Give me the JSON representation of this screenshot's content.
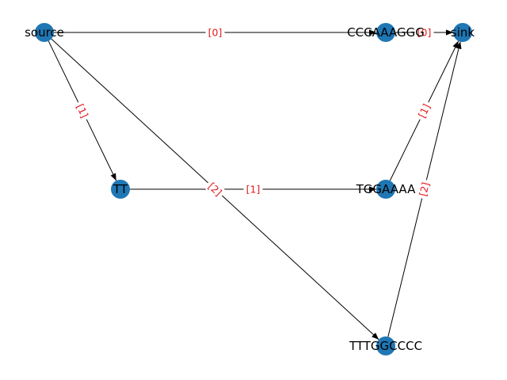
{
  "graph": {
    "node_color": "#1f77b4",
    "edge_label_color": "#e41a1c",
    "nodes": [
      {
        "id": "source",
        "label": "source"
      },
      {
        "id": "cccaaaggg",
        "label": "CCCAAAGGG"
      },
      {
        "id": "sink",
        "label": "sink"
      },
      {
        "id": "tt",
        "label": "TT"
      },
      {
        "id": "tggaaaa",
        "label": "TGGAAAA"
      },
      {
        "id": "tttggcccc",
        "label": "TTTGGCCCC"
      }
    ],
    "edges": [
      {
        "from": "source",
        "to": "cccaaaggg",
        "label": "[0]"
      },
      {
        "from": "cccaaaggg",
        "to": "sink",
        "label": "[0]"
      },
      {
        "from": "source",
        "to": "tt",
        "label": "[1]"
      },
      {
        "from": "source",
        "to": "tttggcccc",
        "label": "[2]"
      },
      {
        "from": "tt",
        "to": "tggaaaa",
        "label": "[1]"
      },
      {
        "from": "tggaaaa",
        "to": "sink",
        "label": "[1]"
      },
      {
        "from": "tttggcccc",
        "to": "sink",
        "label": "[2]"
      }
    ]
  }
}
